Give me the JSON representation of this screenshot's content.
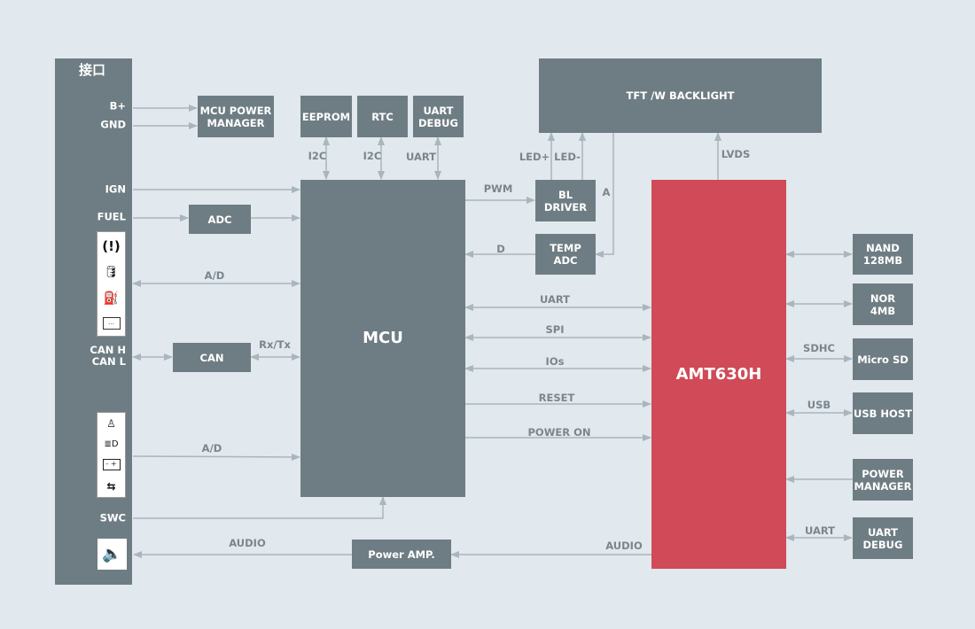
{
  "interface": {
    "title": "接口",
    "b_plus": "B+",
    "gnd": "GND",
    "ign": "IGN",
    "fuel": "FUEL",
    "can": "CAN H\nCAN L",
    "swc": "SWC",
    "icons_group_1": [
      "brake-warning-icon",
      "oil-can-icon",
      "fuel-pump-icon",
      "display-icon"
    ],
    "icons_group_2": [
      "seatbelt-icon",
      "headlight-icon",
      "battery-icon",
      "turn-signal-icon"
    ],
    "speaker_icon": "speaker-icon"
  },
  "blocks": {
    "mcu_power": "MCU POWER\nMANAGER",
    "eeprom": "EEPROM",
    "rtc": "RTC",
    "uart_debug_mcu": "UART\nDEBUG",
    "mcu": "MCU",
    "adc": "ADC",
    "can": "CAN",
    "power_amp": "Power AMP.",
    "tft": "TFT /W BACKLIGHT",
    "bl_driver": "BL\nDRIVER",
    "temp_adc": "TEMP\nADC",
    "amt": "AMT630H",
    "nand": "NAND\n128MB",
    "nor": "NOR\n4MB",
    "microsd": "Micro SD",
    "usb_host": "USB HOST",
    "power_manager": "POWER\nMANAGER",
    "uart_debug_amt": "UART\nDEBUG"
  },
  "edges": {
    "ad1": "A/D",
    "ad2": "A/D",
    "rxtx": "Rx/Tx",
    "audio_left": "AUDIO",
    "audio_right": "AUDIO",
    "i2c_1": "I2C",
    "i2c_2": "I2C",
    "uart_mcu": "UART",
    "pwm": "PWM",
    "d": "D",
    "led_plus": "LED+",
    "led_minus": "LED-",
    "a": "A",
    "lvds": "LVDS",
    "uart": "UART",
    "spi": "SPI",
    "ios": "IOs",
    "reset": "RESET",
    "power_on": "POWER ON",
    "sdhc": "SDHC",
    "usb": "USB",
    "uart_amt": "UART"
  },
  "colors": {
    "background": "#e1e8ee",
    "block": "#6e7d83",
    "soc": "#d04a57",
    "line": "#a9b6bd"
  }
}
